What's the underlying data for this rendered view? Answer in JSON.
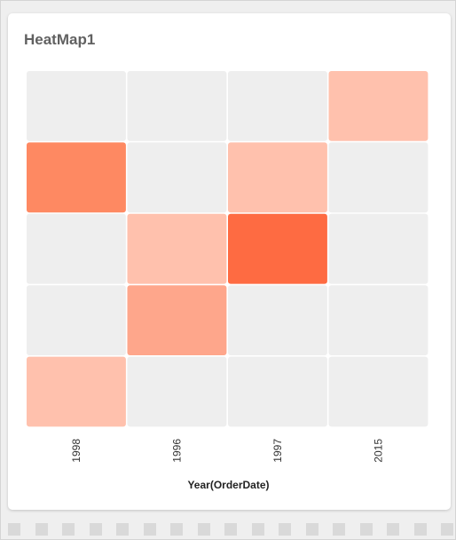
{
  "widget": {
    "title": "HeatMap1"
  },
  "chart_data": {
    "type": "heatmap",
    "title": "HeatMap1",
    "xlabel": "Year(OrderDate)",
    "ylabel": "",
    "x_categories": [
      "1998",
      "1996",
      "1997",
      "2015"
    ],
    "rows": 5,
    "values": [
      [
        null,
        null,
        null,
        1
      ],
      [
        3,
        null,
        1,
        null
      ],
      [
        null,
        1,
        4,
        null
      ],
      [
        null,
        2,
        null,
        null
      ],
      [
        1,
        null,
        null,
        null
      ]
    ],
    "value_range": [
      1,
      4
    ],
    "color_scale": {
      "empty": "#eeeeee",
      "1": "#ffc1ad",
      "2": "#fea68b",
      "3": "#fe8962",
      "4": "#fe6b42"
    },
    "grid": false,
    "legend": "none"
  }
}
